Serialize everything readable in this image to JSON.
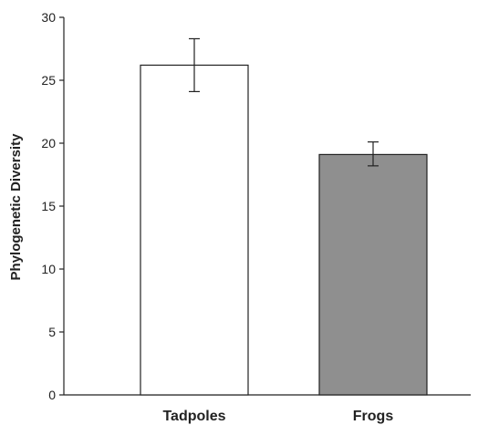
{
  "chart_data": {
    "type": "bar",
    "title": "",
    "xlabel": "",
    "ylabel": "Phylogenetic Diversity",
    "ylim": [
      0,
      30
    ],
    "yticks": [
      0,
      5,
      10,
      15,
      20,
      25,
      30
    ],
    "categories": [
      "Tadpoles",
      "Frogs"
    ],
    "values": [
      26.2,
      19.1
    ],
    "error_low": [
      24.1,
      18.2
    ],
    "error_high": [
      28.3,
      20.1
    ],
    "bar_colors": [
      "#ffffff",
      "#8f8f8f"
    ],
    "grid": false,
    "legend": "none"
  }
}
